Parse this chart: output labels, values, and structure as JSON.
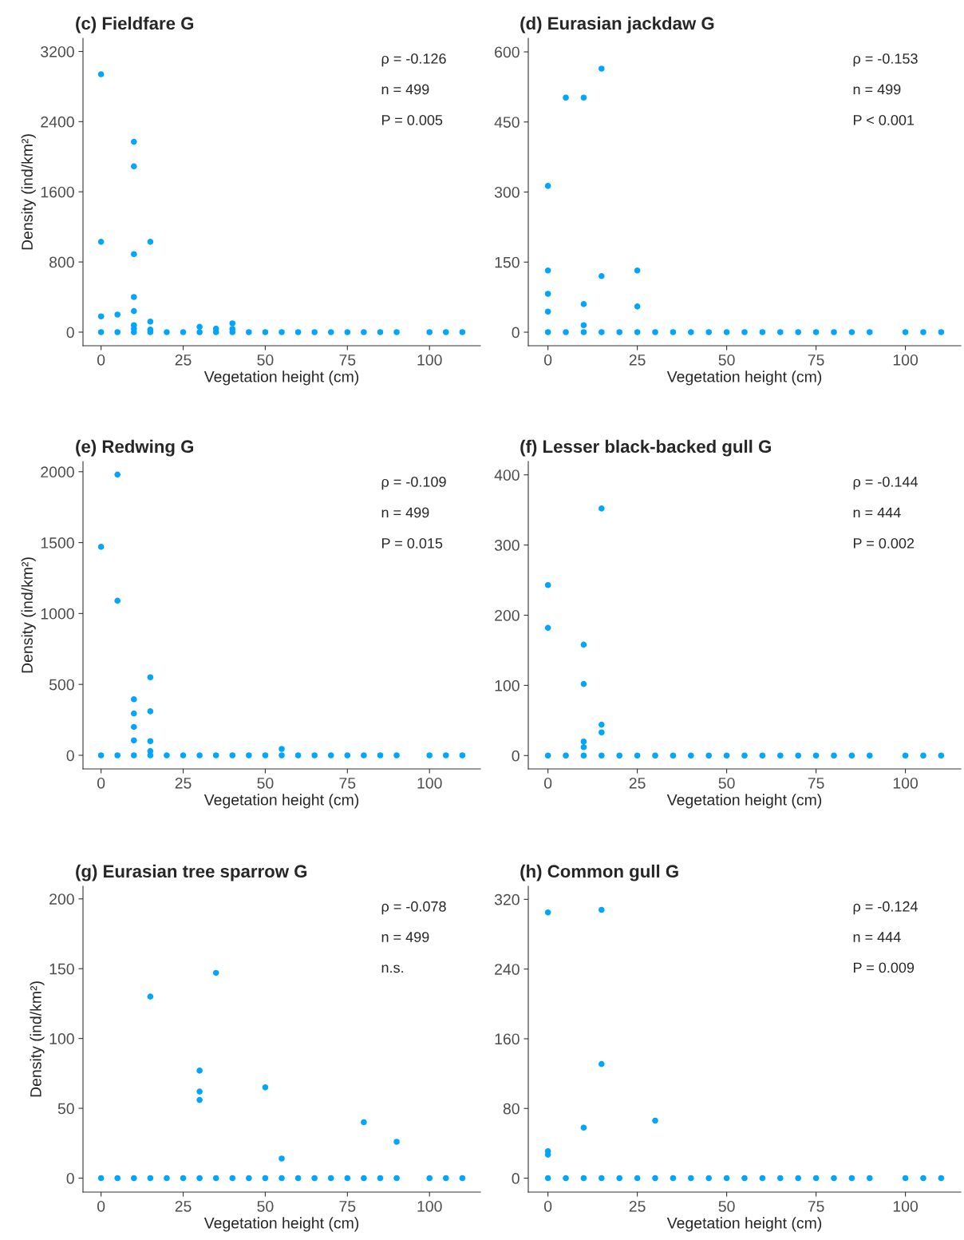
{
  "chart_data": [
    {
      "type": "scatter",
      "title": "(c) Fieldfare G",
      "xlabel": "Vegetation height (cm)",
      "ylabel": "Density (ind/km²)",
      "marker": "circle",
      "xlim": [
        -5.5,
        115.5
      ],
      "xticks": [
        0,
        25,
        50,
        75,
        100
      ],
      "ylim": [
        -155,
        3350
      ],
      "yticks": [
        0,
        800,
        1600,
        2400,
        3200
      ],
      "annotations": [
        "ρ = -0.126",
        "n = 499",
        "P = 0.005"
      ],
      "series": [
        {
          "color": "#00a5ff",
          "x": [
            0,
            5,
            10,
            15,
            20,
            25,
            30,
            35,
            40,
            45,
            50,
            55,
            60,
            65,
            70,
            75,
            80,
            85,
            90,
            100,
            105,
            110,
            0,
            0,
            0,
            5,
            10,
            10,
            10,
            10,
            10,
            10,
            10,
            15,
            15,
            15,
            30,
            35,
            40,
            40
          ],
          "values": [
            0,
            0,
            0,
            0,
            0,
            0,
            0,
            0,
            0,
            0,
            0,
            0,
            0,
            0,
            0,
            0,
            0,
            0,
            0,
            0,
            0,
            0,
            2940,
            1030,
            180,
            200,
            2170,
            1890,
            890,
            400,
            240,
            80,
            40,
            1030,
            120,
            30,
            60,
            40,
            100,
            36
          ]
        }
      ]
    },
    {
      "type": "scatter",
      "title": "(d) Eurasian jackdaw G",
      "xlabel": "Vegetation height (cm)",
      "marker": "circle",
      "xlim": [
        -5.5,
        115.5
      ],
      "xticks": [
        0,
        25,
        50,
        75,
        100
      ],
      "ylim": [
        -29,
        629
      ],
      "yticks": [
        0,
        150,
        300,
        450,
        600
      ],
      "annotations": [
        "ρ = -0.153",
        "n = 499",
        "P < 0.001"
      ],
      "series": [
        {
          "color": "#00a5ff",
          "x": [
            0,
            5,
            10,
            15,
            20,
            25,
            30,
            35,
            40,
            45,
            50,
            55,
            60,
            65,
            70,
            75,
            80,
            85,
            90,
            100,
            105,
            110,
            0,
            0,
            0,
            0,
            5,
            10,
            10,
            10,
            15,
            15,
            25,
            25
          ],
          "values": [
            0,
            0,
            0,
            0,
            0,
            0,
            0,
            0,
            0,
            0,
            0,
            0,
            0,
            0,
            0,
            0,
            0,
            0,
            0,
            0,
            0,
            0,
            313,
            132,
            82,
            44,
            502,
            502,
            60,
            15,
            564,
            120,
            132,
            55
          ]
        }
      ]
    },
    {
      "type": "scatter",
      "title": "(e) Redwing G",
      "xlabel": "Vegetation height (cm)",
      "ylabel": "Density (ind/km²)",
      "marker": "circle",
      "xlim": [
        -5.5,
        115.5
      ],
      "xticks": [
        0,
        25,
        50,
        75,
        100
      ],
      "ylim": [
        -96,
        2072
      ],
      "yticks": [
        0,
        500,
        1000,
        1500,
        2000
      ],
      "annotations": [
        "ρ = -0.109",
        "n = 499",
        "P = 0.015"
      ],
      "series": [
        {
          "color": "#00a5ff",
          "x": [
            0,
            5,
            10,
            15,
            20,
            25,
            30,
            35,
            40,
            45,
            50,
            55,
            60,
            65,
            70,
            75,
            80,
            85,
            90,
            100,
            105,
            110,
            0,
            5,
            5,
            10,
            10,
            10,
            10,
            15,
            15,
            15,
            15,
            55
          ],
          "values": [
            0,
            0,
            0,
            0,
            0,
            0,
            0,
            0,
            0,
            0,
            0,
            0,
            0,
            0,
            0,
            0,
            0,
            0,
            0,
            0,
            0,
            0,
            1470,
            1980,
            1090,
            395,
            295,
            200,
            105,
            550,
            310,
            100,
            30,
            45
          ]
        }
      ]
    },
    {
      "type": "scatter",
      "title": "(f) Lesser black-backed gull G",
      "xlabel": "Vegetation height (cm)",
      "marker": "circle",
      "xlim": [
        -5.5,
        115.5
      ],
      "xticks": [
        0,
        25,
        50,
        75,
        100
      ],
      "ylim": [
        -19,
        419
      ],
      "yticks": [
        0,
        100,
        200,
        300,
        400
      ],
      "annotations": [
        "ρ = -0.144",
        "n = 444",
        "P = 0.002"
      ],
      "series": [
        {
          "color": "#00a5ff",
          "x": [
            0,
            5,
            10,
            15,
            20,
            25,
            30,
            35,
            40,
            45,
            50,
            55,
            60,
            65,
            70,
            75,
            80,
            85,
            90,
            100,
            105,
            110,
            0,
            0,
            10,
            10,
            10,
            10,
            15,
            15,
            15
          ],
          "values": [
            0,
            0,
            0,
            0,
            0,
            0,
            0,
            0,
            0,
            0,
            0,
            0,
            0,
            0,
            0,
            0,
            0,
            0,
            0,
            0,
            0,
            0,
            243,
            182,
            158,
            102,
            20,
            12,
            352,
            44,
            33
          ]
        }
      ]
    },
    {
      "type": "scatter",
      "title": "(g) Eurasian tree sparrow G",
      "xlabel": "Vegetation height (cm)",
      "ylabel": "Density (ind/km²)",
      "marker": "circle",
      "xlim": [
        -5.5,
        115.5
      ],
      "xticks": [
        0,
        25,
        50,
        75,
        100
      ],
      "ylim": [
        -10,
        209
      ],
      "yticks": [
        0,
        50,
        100,
        150,
        200
      ],
      "annotations": [
        "ρ = -0.078",
        "n = 499",
        "n.s."
      ],
      "series": [
        {
          "color": "#00a5ff",
          "x": [
            0,
            5,
            10,
            15,
            20,
            25,
            30,
            35,
            40,
            45,
            50,
            55,
            60,
            65,
            70,
            75,
            80,
            85,
            90,
            100,
            105,
            110,
            15,
            35,
            30,
            30,
            30,
            50,
            55,
            80,
            90
          ],
          "values": [
            0,
            0,
            0,
            0,
            0,
            0,
            0,
            0,
            0,
            0,
            0,
            0,
            0,
            0,
            0,
            0,
            0,
            0,
            0,
            0,
            0,
            0,
            130,
            147,
            77,
            62,
            56,
            65,
            14,
            40,
            26
          ]
        }
      ]
    },
    {
      "type": "scatter",
      "title": "(h) Common gull G",
      "xlabel": "Vegetation height (cm)",
      "marker": "circle",
      "xlim": [
        -5.5,
        115.5
      ],
      "xticks": [
        0,
        25,
        50,
        75,
        100
      ],
      "ylim": [
        -16,
        335
      ],
      "yticks": [
        0,
        80,
        160,
        240,
        320
      ],
      "annotations": [
        "ρ = -0.124",
        "n = 444",
        "P = 0.009"
      ],
      "series": [
        {
          "color": "#00a5ff",
          "x": [
            0,
            5,
            10,
            15,
            20,
            25,
            30,
            35,
            40,
            45,
            50,
            55,
            60,
            65,
            70,
            75,
            80,
            85,
            90,
            100,
            105,
            110,
            0,
            0,
            0,
            10,
            15,
            15,
            30
          ],
          "values": [
            0,
            0,
            0,
            0,
            0,
            0,
            0,
            0,
            0,
            0,
            0,
            0,
            0,
            0,
            0,
            0,
            0,
            0,
            0,
            0,
            0,
            0,
            305,
            31,
            27,
            58,
            308,
            131,
            66
          ]
        }
      ]
    }
  ]
}
